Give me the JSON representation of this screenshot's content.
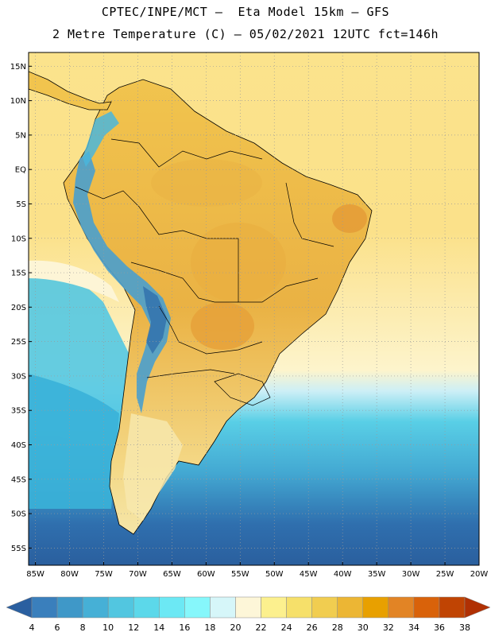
{
  "header": {
    "line1": "CPTEC/INPE/MCT –  Eta Model 15km – GFS",
    "line2": "2 Metre Temperature (C) – 05/02/2021 12UTC fct=146h"
  },
  "map": {
    "variable": "2 Metre Temperature (C)",
    "model": "Eta Model 15km - GFS",
    "lat_labels": [
      "15N",
      "10N",
      "5N",
      "EQ",
      "5S",
      "10S",
      "15S",
      "20S",
      "25S",
      "30S",
      "35S",
      "40S",
      "45S",
      "50S",
      "55S"
    ],
    "lat_values": [
      15,
      10,
      5,
      0,
      -5,
      -10,
      -15,
      -20,
      -25,
      -30,
      -35,
      -40,
      -45,
      -50,
      -55
    ],
    "lon_labels": [
      "85W",
      "80W",
      "75W",
      "70W",
      "65W",
      "60W",
      "55W",
      "50W",
      "45W",
      "40W",
      "35W",
      "30W",
      "25W",
      "20W"
    ],
    "lon_values": [
      -85,
      -80,
      -75,
      -70,
      -65,
      -60,
      -55,
      -50,
      -45,
      -40,
      -35,
      -30,
      -25,
      -20
    ],
    "lat_range": [
      -57.5,
      17
    ],
    "lon_range": [
      -86,
      -20
    ]
  },
  "colorbar": {
    "ticks": [
      "4",
      "6",
      "8",
      "10",
      "12",
      "14",
      "16",
      "18",
      "20",
      "22",
      "24",
      "26",
      "28",
      "30",
      "32",
      "34",
      "36",
      "38"
    ],
    "colors": [
      "#2a5fa0",
      "#3a7fbc",
      "#3f98c8",
      "#46b0d6",
      "#52c6e0",
      "#5cd8ea",
      "#6ce8f4",
      "#86f7fb",
      "#d6f6f9",
      "#fdf6d8",
      "#fcf08e",
      "#f6e06a",
      "#f1cd50",
      "#ecb634",
      "#e8a000",
      "#e28425",
      "#d9620a",
      "#c04403",
      "#b03003"
    ]
  },
  "fill_colors": {
    "ocean_warm": "#fbe28a",
    "ocean_cool": "#5ad0e6",
    "ocean_cold": "#2e65a5",
    "land_base": "#f1c84f",
    "land_hot": "#e6a33a",
    "andes_cold": "#4aa0cc",
    "border": "#000000",
    "grid": "#9a9a9a"
  }
}
